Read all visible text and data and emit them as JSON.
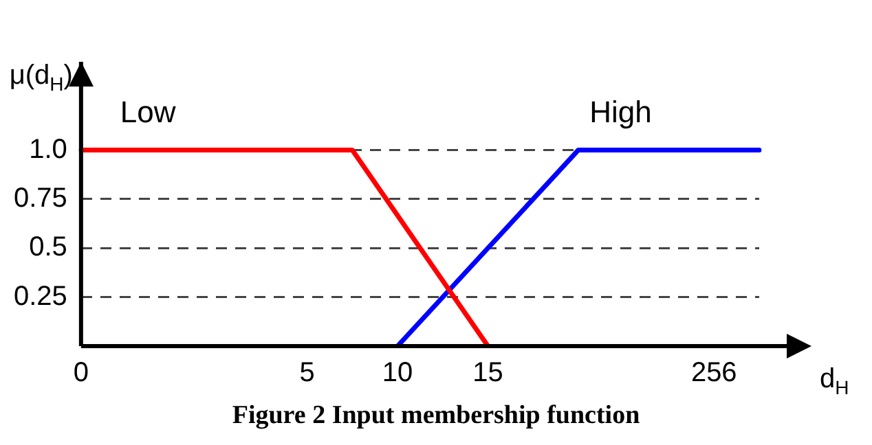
{
  "chart_data": {
    "type": "line",
    "ylabel": "μ(d$_{H}$)",
    "xlabel": "d$_{H}$",
    "categories": [
      "0",
      null,
      null,
      null,
      null,
      "5",
      null,
      "10",
      null,
      "15",
      null,
      null,
      null,
      null,
      "256",
      null
    ],
    "series": [
      {
        "name": "Low",
        "color": "#ff0000",
        "values": [
          1,
          null,
          null,
          null,
          null,
          null,
          1,
          null,
          null,
          0,
          null,
          null,
          null,
          null,
          null,
          null
        ]
      },
      {
        "name": "High",
        "color": "#0000ff",
        "values": [
          null,
          null,
          null,
          null,
          null,
          null,
          null,
          0,
          null,
          null,
          null,
          1,
          null,
          null,
          null,
          1
        ]
      }
    ],
    "ylim": [
      0,
      1.45
    ],
    "yticks": [
      {
        "value": 0.25,
        "label": "0.25"
      },
      {
        "value": 0.5,
        "label": "0.5"
      },
      {
        "value": 0.75,
        "label": "0.75"
      },
      {
        "value": 1,
        "label": "1.0"
      }
    ],
    "grid": "y",
    "line_style": "solid",
    "marker": "none",
    "annotations": [
      "Figure 2 Input membership function"
    ]
  }
}
